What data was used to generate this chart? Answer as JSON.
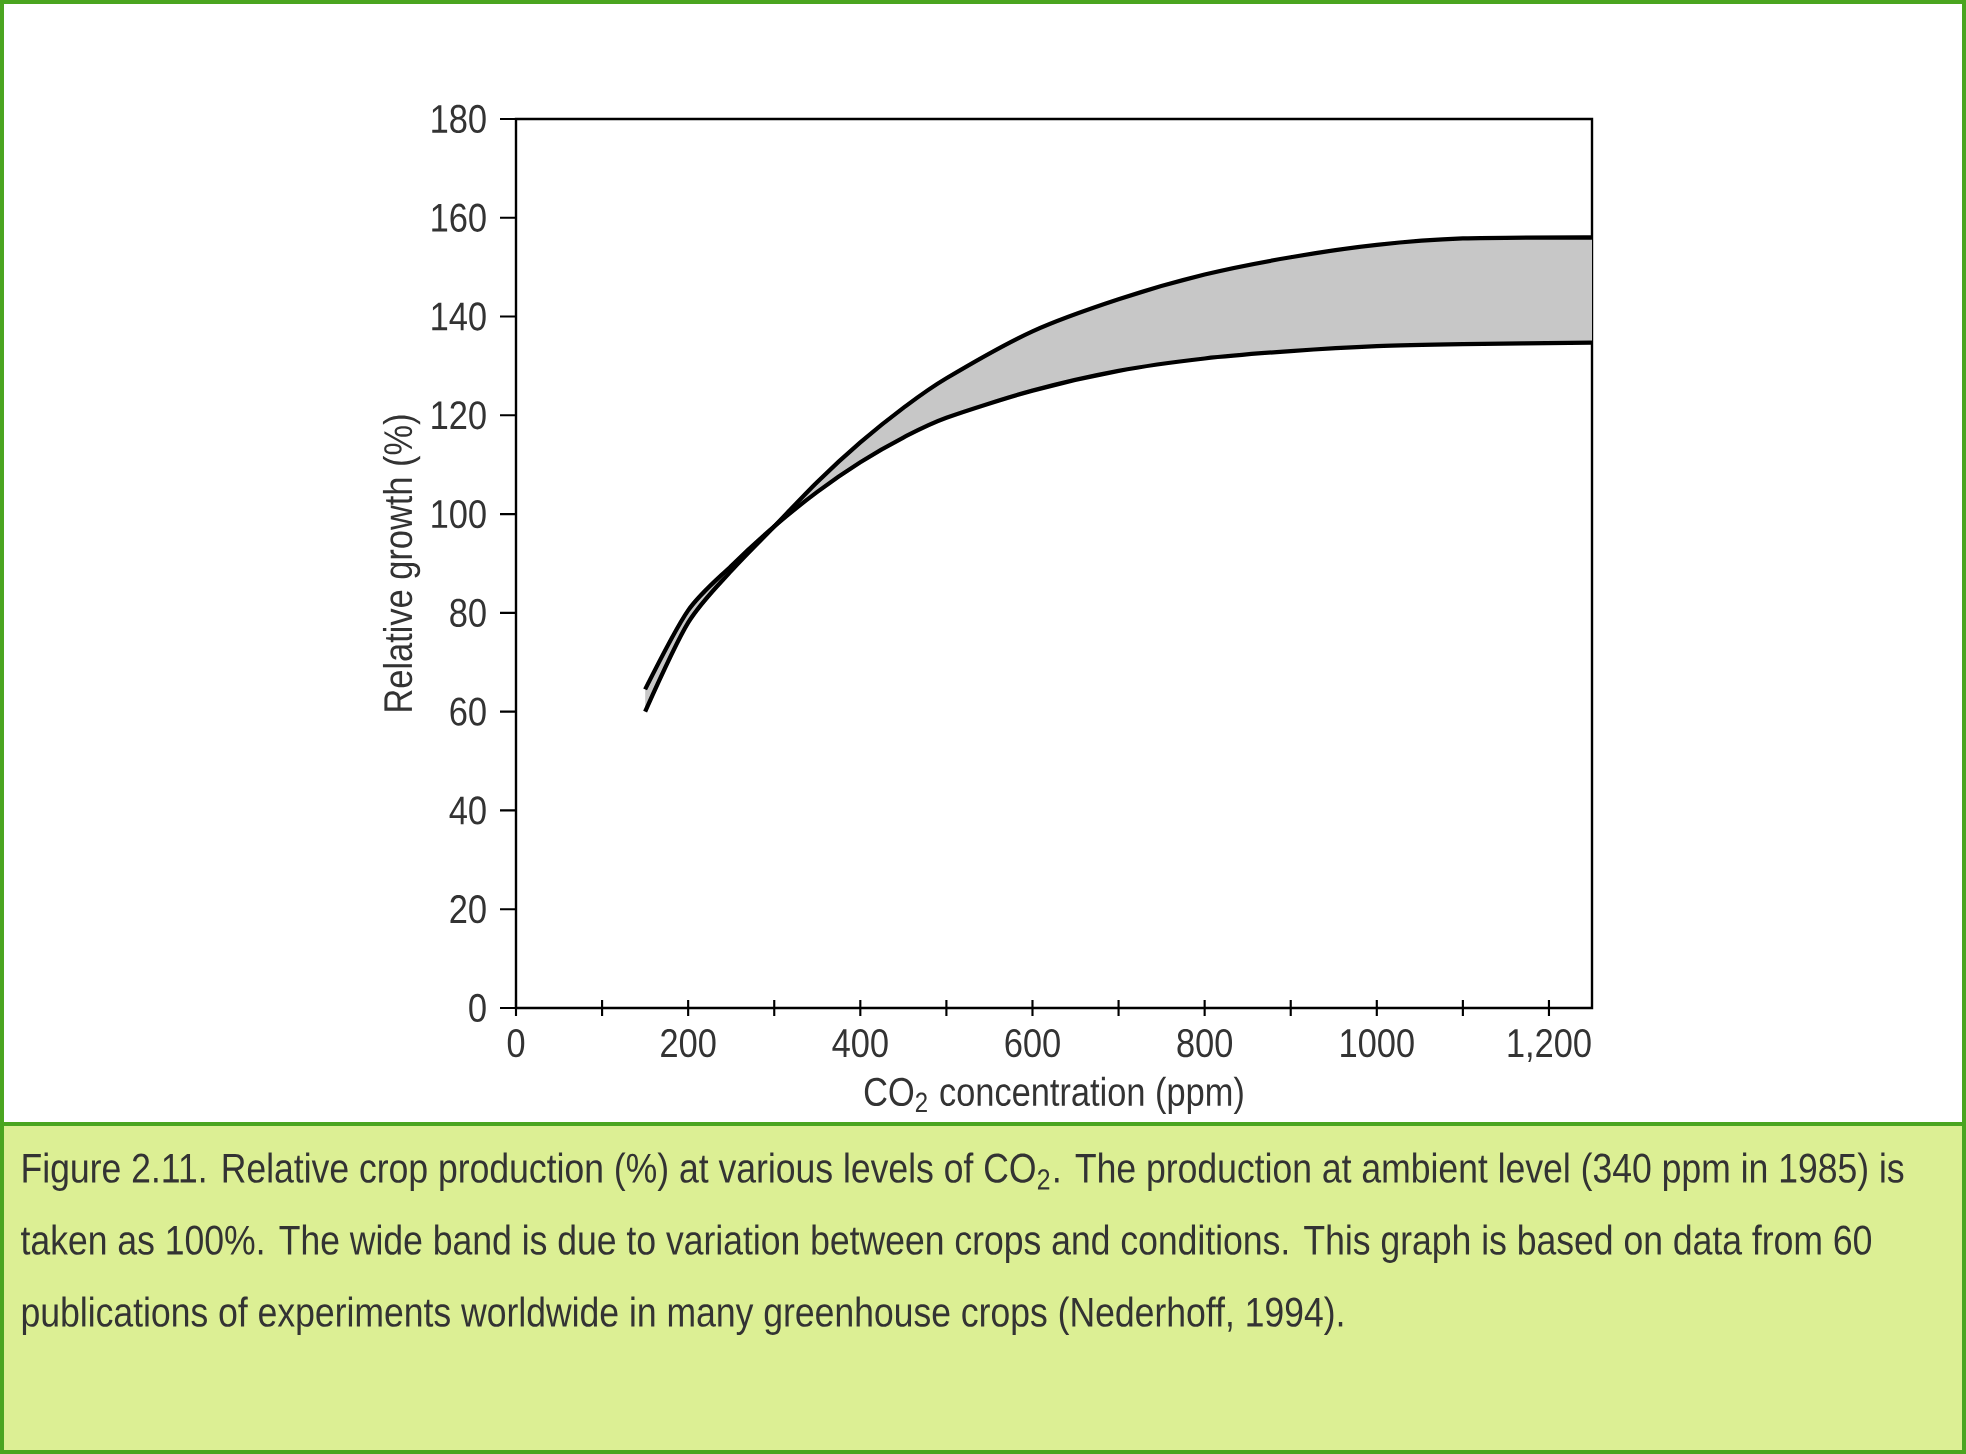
{
  "chart_data": {
    "type": "line",
    "xlabel": "CO$_{2}$ concentration (ppm)",
    "ylabel": "Relative growth (%)",
    "xlim": [
      0,
      1250
    ],
    "ylim": [
      0,
      180
    ],
    "xticks": [
      0,
      {
        "value": 100,
        "label": null
      },
      200,
      {
        "value": 300,
        "label": null
      },
      400,
      {
        "value": 500,
        "label": null
      },
      600,
      {
        "value": 700,
        "label": null
      },
      800,
      {
        "value": 900,
        "label": null
      },
      1000,
      {
        "value": 1100,
        "label": null
      },
      {
        "value": 1200,
        "label": "1,200"
      }
    ],
    "yticks": [
      0,
      20,
      40,
      60,
      80,
      100,
      120,
      140,
      160,
      180
    ],
    "grid": false,
    "series": [
      {
        "color": "#000000",
        "x": [
          150,
          200,
          250,
          300,
          350,
          400,
          450,
          500,
          600,
          700,
          800,
          900,
          1000,
          1100,
          1250
        ],
        "values": [
          60,
          78,
          88.5,
          97.5,
          106.5,
          114.5,
          121.5,
          127.5,
          137,
          143.5,
          148.5,
          152,
          154.5,
          155.8,
          156
        ]
      },
      {
        "color": "#000000",
        "x": [
          150,
          200,
          250,
          300,
          350,
          400,
          450,
          500,
          600,
          700,
          800,
          900,
          1000,
          1100,
          1250
        ],
        "values": [
          64.5,
          80.5,
          89.5,
          97.5,
          104.5,
          110.5,
          115.5,
          119.5,
          125,
          129,
          131.5,
          133,
          134,
          134.4,
          134.7
        ],
        "lower": [
          64.5,
          80.5,
          89.5,
          97.5,
          104.5,
          110.5,
          115.5,
          119.5,
          125,
          129,
          131.5,
          133,
          134,
          134.4,
          134.7
        ],
        "upper": [
          60,
          78,
          88.5,
          97.5,
          106.5,
          114.5,
          121.5,
          127.5,
          137,
          143.5,
          148.5,
          152,
          154.5,
          155.8,
          156
        ]
      }
    ],
    "annotations": [
      "Figure 2.11. Relative crop production (%) at various levels of CO$_{2}$. The production at ambient level (340 ppm in 1985) is taken as 100%. The wide band is due to variation between crops and conditions. This graph is based on data from 60 publications of experiments worldwide in many greenhouse crops (Nederhoff, 1994)."
    ]
  }
}
